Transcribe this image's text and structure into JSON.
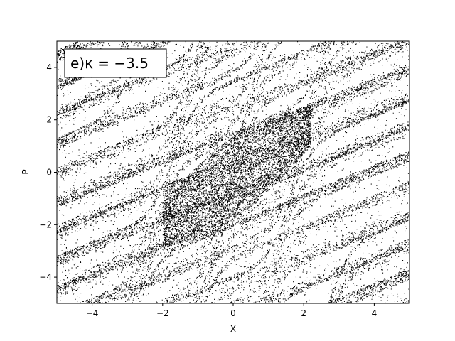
{
  "chart_data": {
    "type": "scatter",
    "title": "",
    "xlabel": "X",
    "ylabel": "P",
    "xlim": [
      -5,
      5
    ],
    "ylim": [
      -5,
      5
    ],
    "x_ticks": [
      -4,
      -2,
      0,
      2,
      4
    ],
    "y_ticks": [
      -4,
      -2,
      0,
      2,
      4
    ],
    "x_tick_labels": [
      "−4",
      "−2",
      "0",
      "2",
      "4"
    ],
    "y_tick_labels": [
      "−4",
      "−2",
      "0",
      "2",
      "4"
    ],
    "grid": false,
    "legend_position": "top-left",
    "annotation": "e)κ = −3.5",
    "kappa": -3.5,
    "marker_color": "#000000",
    "description": "Phase-space (Poincaré-type) scatter of a chaotic map: dense black stretched-and-folded S-shaped filaments spanning the full X–P square, with the densest core around X≈-1..1, P≈-2..2."
  }
}
